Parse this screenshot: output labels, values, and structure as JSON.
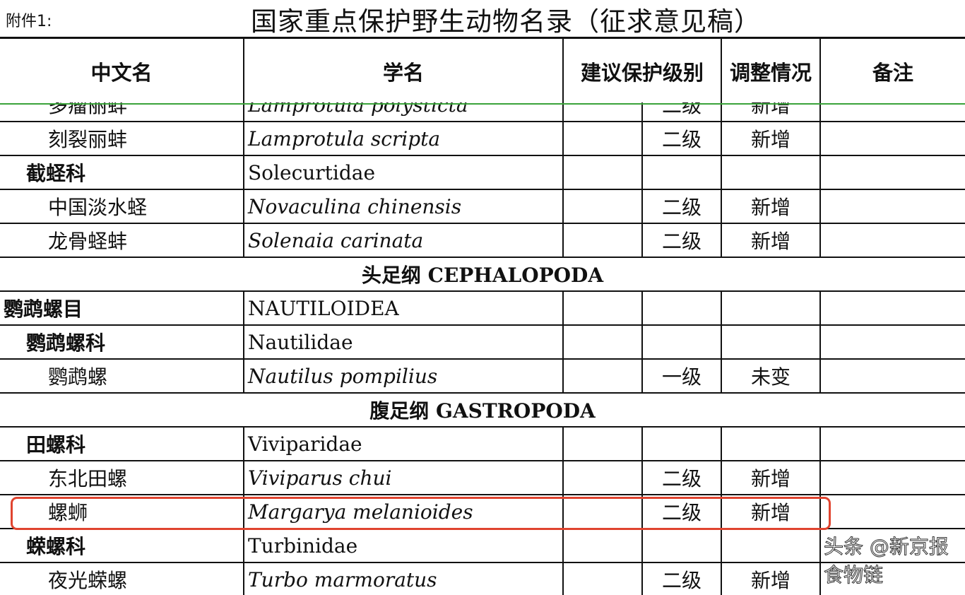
{
  "annex_label": "附件1:",
  "title": "国家重点保护野生动物名录（征求意见稿）",
  "columns": [
    "中文名",
    "学名",
    "建议保护级别",
    "调整情况",
    "备注"
  ],
  "rows": [
    {
      "type": "species",
      "cn": "多瘤丽蚌",
      "latin": "Lamprotula polysticta",
      "grade": "二级",
      "change": "新增",
      "note": ""
    },
    {
      "type": "species",
      "cn": "刻裂丽蚌",
      "latin": "Lamprotula scripta",
      "grade": "二级",
      "change": "新增",
      "note": ""
    },
    {
      "type": "family",
      "cn": "截蛏科",
      "latin": "Solecurtidae"
    },
    {
      "type": "species",
      "cn": "中国淡水蛏",
      "latin": "Novaculina chinensis",
      "grade": "二级",
      "change": "新增",
      "note": ""
    },
    {
      "type": "species",
      "cn": "龙骨蛏蚌",
      "latin": "Solenaia carinata",
      "grade": "二级",
      "change": "新增",
      "note": ""
    },
    {
      "type": "class",
      "label": "头足纲 CEPHALOPODA"
    },
    {
      "type": "order",
      "cn": "鹦鹉螺目",
      "latin": "NAUTILOIDEA"
    },
    {
      "type": "family",
      "cn": "鹦鹉螺科",
      "latin": "Nautilidae"
    },
    {
      "type": "species",
      "cn": "鹦鹉螺",
      "latin": "Nautilus pompilius",
      "grade": "一级",
      "change": "未变",
      "note": ""
    },
    {
      "type": "class",
      "label": "腹足纲 GASTROPODA"
    },
    {
      "type": "family",
      "cn": "田螺科",
      "latin": "Viviparidae"
    },
    {
      "type": "species",
      "cn": "东北田螺",
      "latin": "Viviparus chui",
      "grade": "二级",
      "change": "新增",
      "note": ""
    },
    {
      "type": "species",
      "cn": "螺蛳",
      "latin": "Margarya melanioides",
      "grade": "二级",
      "change": "新增",
      "note": "",
      "highlighted": true
    },
    {
      "type": "family",
      "cn": "蝾螺科",
      "latin": "Turbinidae"
    },
    {
      "type": "species",
      "cn": "夜光蝾螺",
      "latin": "Turbo marmoratus",
      "grade": "二级",
      "change": "新增",
      "note": ""
    }
  ],
  "highlight_color": "#e0442f",
  "watermark": "头条 @新京报食物链"
}
